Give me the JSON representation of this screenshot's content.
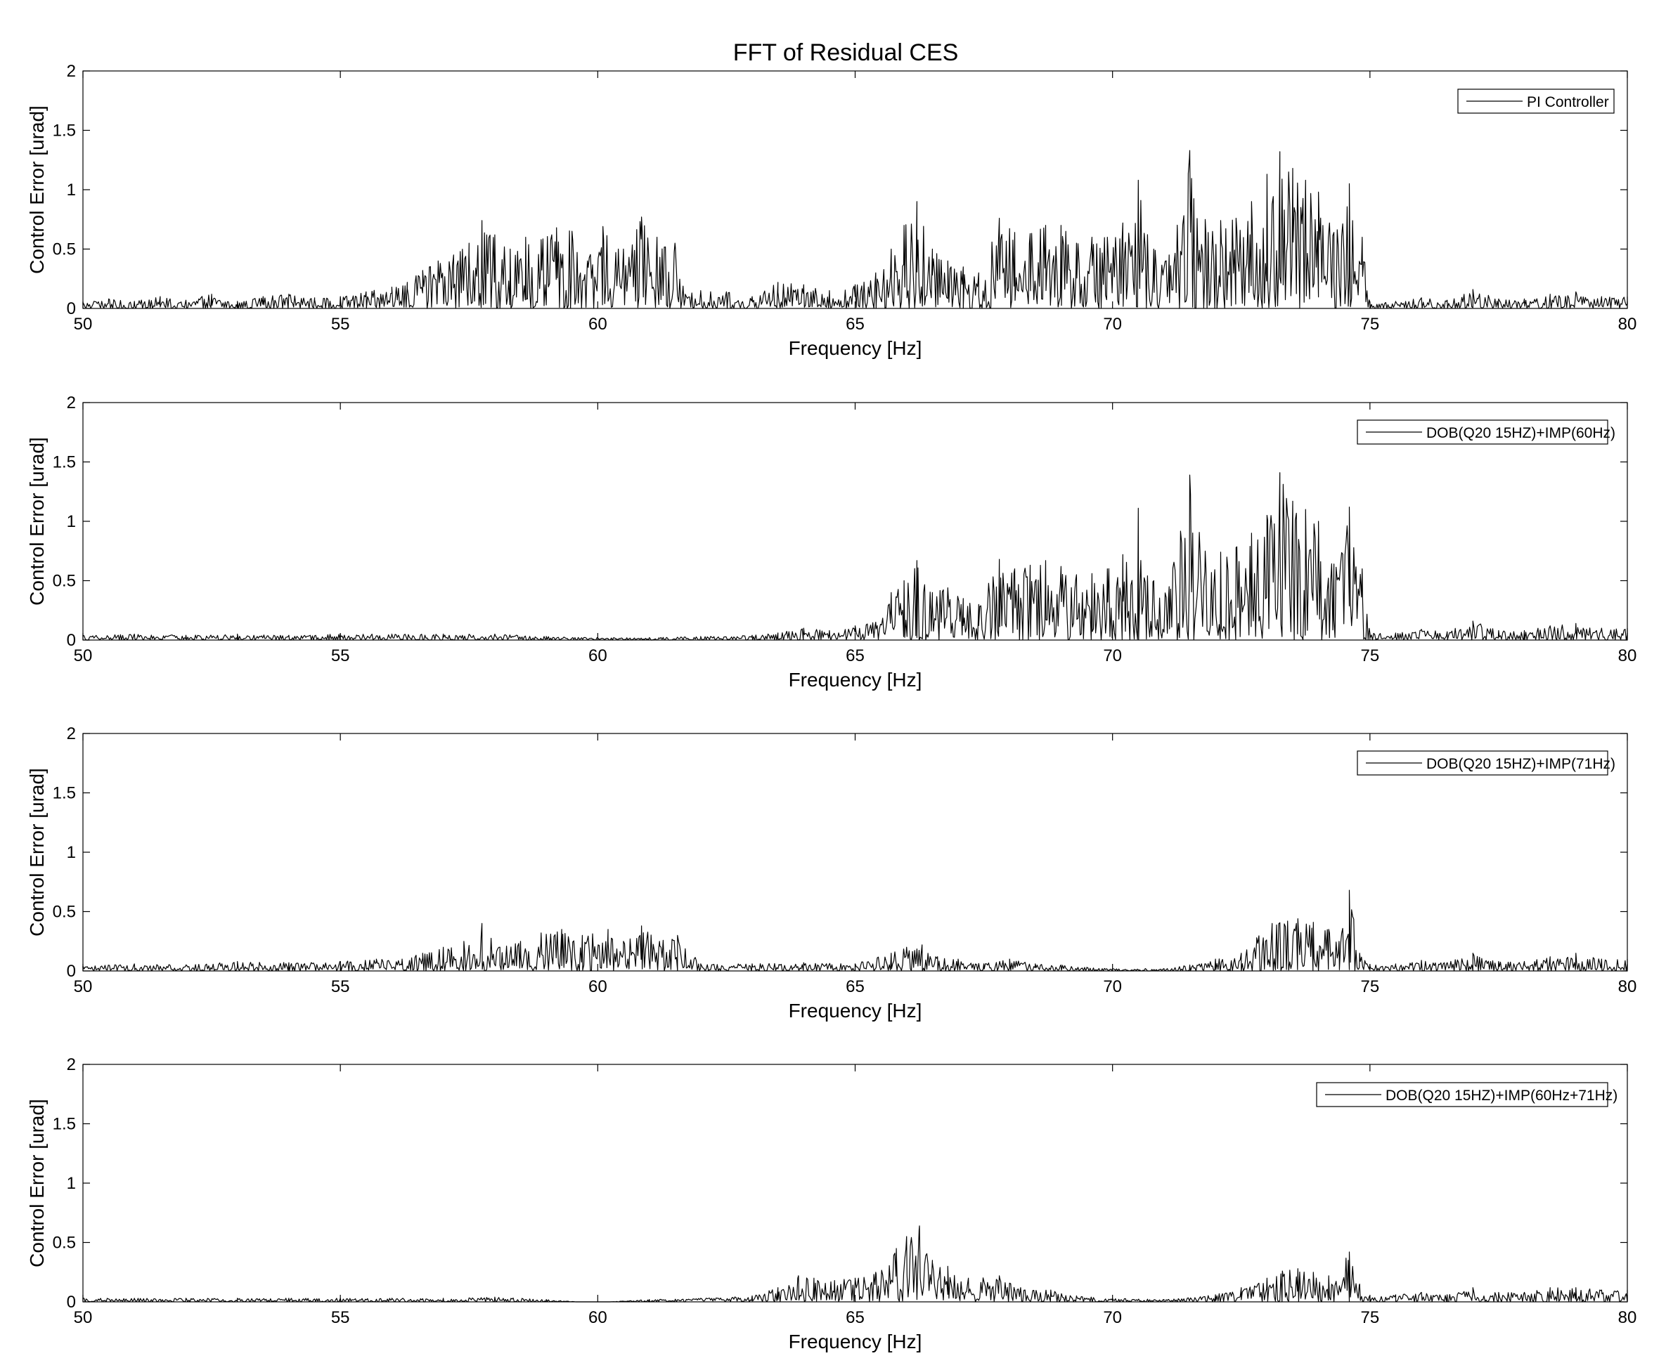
{
  "figure": {
    "title": "FFT of Residual CES",
    "background": "#ffffff",
    "line_color": "#000000"
  },
  "chart_data": [
    {
      "type": "line",
      "xlabel": "Frequency [Hz]",
      "ylabel": "Control Error [urad]",
      "xlim": [
        50,
        80
      ],
      "ylim": [
        0,
        2
      ],
      "xticks": [
        "50",
        "55",
        "60",
        "65",
        "70",
        "75",
        "80"
      ],
      "yticks": [
        "0",
        "0.5",
        "1",
        "1.5",
        "2"
      ],
      "grid": false,
      "legend_position": "top-right",
      "series": [
        {
          "name": "PI Controller",
          "x": [
            50.0,
            50.5,
            51.0,
            51.5,
            52.0,
            52.5,
            53.0,
            53.5,
            54.0,
            54.5,
            55.0,
            55.5,
            56.0,
            56.3,
            56.6,
            56.9,
            57.2,
            57.5,
            57.75,
            58.0,
            58.3,
            58.6,
            58.9,
            59.2,
            59.5,
            59.8,
            60.1,
            60.4,
            60.85,
            61.15,
            61.5,
            61.7,
            62.0,
            62.5,
            63.0,
            63.5,
            64.0,
            64.5,
            65.0,
            65.4,
            65.7,
            65.95,
            66.2,
            66.5,
            66.8,
            67.1,
            67.4,
            67.8,
            68.1,
            68.4,
            68.7,
            69.0,
            69.3,
            69.6,
            69.9,
            70.2,
            70.5,
            70.8,
            71.1,
            71.5,
            71.8,
            72.1,
            72.4,
            72.7,
            73.0,
            73.25,
            73.5,
            73.75,
            74.0,
            74.3,
            74.6,
            74.85,
            75.0,
            75.5,
            76.0,
            76.5,
            77.0,
            77.5,
            78.0,
            78.5,
            79.0,
            79.5,
            80.0
          ],
          "y": [
            0.05,
            0.08,
            0.06,
            0.1,
            0.07,
            0.12,
            0.06,
            0.1,
            0.12,
            0.09,
            0.1,
            0.14,
            0.18,
            0.22,
            0.32,
            0.4,
            0.45,
            0.55,
            0.74,
            0.62,
            0.5,
            0.6,
            0.58,
            0.68,
            0.65,
            0.4,
            0.69,
            0.5,
            0.77,
            0.6,
            0.55,
            0.12,
            0.15,
            0.14,
            0.1,
            0.22,
            0.2,
            0.15,
            0.2,
            0.3,
            0.5,
            0.7,
            0.9,
            0.5,
            0.4,
            0.35,
            0.3,
            0.76,
            0.64,
            0.63,
            0.7,
            0.7,
            0.55,
            0.6,
            0.6,
            0.72,
            1.08,
            0.5,
            0.45,
            1.33,
            0.75,
            0.74,
            0.76,
            0.9,
            1.13,
            1.32,
            1.18,
            1.08,
            0.98,
            0.64,
            1.05,
            0.6,
            0.05,
            0.06,
            0.09,
            0.07,
            0.16,
            0.08,
            0.08,
            0.12,
            0.14,
            0.1,
            0.1
          ]
        }
      ]
    },
    {
      "type": "line",
      "xlabel": "Frequency [Hz]",
      "ylabel": "Control Error [urad]",
      "xlim": [
        50,
        80
      ],
      "ylim": [
        0,
        2
      ],
      "xticks": [
        "50",
        "55",
        "60",
        "65",
        "70",
        "75",
        "80"
      ],
      "yticks": [
        "0",
        "0.5",
        "1",
        "1.5",
        "2"
      ],
      "grid": false,
      "legend_position": "top-right",
      "series": [
        {
          "name": "DOB(Q20 15HZ)+IMP(60Hz)",
          "x": [
            50.0,
            51.0,
            52.0,
            53.0,
            54.0,
            55.0,
            56.0,
            57.0,
            58.0,
            59.0,
            60.0,
            61.0,
            62.0,
            63.0,
            63.5,
            64.0,
            64.5,
            65.0,
            65.4,
            65.7,
            65.95,
            66.2,
            66.5,
            66.8,
            67.1,
            67.4,
            67.8,
            68.1,
            68.4,
            68.7,
            69.0,
            69.3,
            69.6,
            69.9,
            70.2,
            70.5,
            70.8,
            71.1,
            71.5,
            71.8,
            72.1,
            72.4,
            72.7,
            73.0,
            73.25,
            73.5,
            73.75,
            74.0,
            74.3,
            74.6,
            74.85,
            75.0,
            75.5,
            76.0,
            76.5,
            77.0,
            77.5,
            78.0,
            78.5,
            79.0,
            79.5,
            80.0
          ],
          "y": [
            0.04,
            0.05,
            0.04,
            0.05,
            0.04,
            0.05,
            0.05,
            0.05,
            0.05,
            0.03,
            0.02,
            0.02,
            0.03,
            0.04,
            0.06,
            0.1,
            0.08,
            0.12,
            0.15,
            0.4,
            0.5,
            0.67,
            0.4,
            0.44,
            0.35,
            0.3,
            0.68,
            0.6,
            0.63,
            0.67,
            0.62,
            0.55,
            0.56,
            0.6,
            0.72,
            1.11,
            0.5,
            0.45,
            1.39,
            0.75,
            0.74,
            0.78,
            0.9,
            1.05,
            1.41,
            1.17,
            1.1,
            1.0,
            0.64,
            1.12,
            0.6,
            0.06,
            0.06,
            0.09,
            0.07,
            0.16,
            0.08,
            0.08,
            0.12,
            0.14,
            0.1,
            0.1
          ]
        }
      ]
    },
    {
      "type": "line",
      "xlabel": "Frequency [Hz]",
      "ylabel": "Control Error [urad]",
      "xlim": [
        50,
        80
      ],
      "ylim": [
        0,
        2
      ],
      "xticks": [
        "50",
        "55",
        "60",
        "65",
        "70",
        "75",
        "80"
      ],
      "yticks": [
        "0",
        "0.5",
        "1",
        "1.5",
        "2"
      ],
      "grid": false,
      "legend_position": "top-right",
      "series": [
        {
          "name": "DOB(Q20 15HZ)+IMP(71Hz)",
          "x": [
            50.0,
            51.0,
            52.0,
            53.0,
            54.0,
            55.0,
            55.7,
            56.2,
            56.6,
            57.0,
            57.4,
            57.75,
            58.1,
            58.5,
            58.9,
            59.3,
            59.7,
            60.2,
            60.5,
            60.85,
            61.2,
            61.55,
            62.0,
            63.0,
            64.0,
            65.0,
            65.7,
            66.0,
            66.3,
            66.6,
            67.0,
            67.5,
            68.0,
            68.5,
            69.0,
            69.5,
            70.0,
            71.0,
            71.5,
            72.0,
            72.5,
            72.8,
            73.1,
            73.4,
            73.6,
            73.9,
            74.2,
            74.4,
            74.6,
            74.8,
            75.0,
            75.5,
            76.0,
            76.5,
            77.0,
            77.5,
            78.0,
            78.5,
            79.0,
            79.5,
            80.0
          ],
          "y": [
            0.04,
            0.06,
            0.05,
            0.08,
            0.07,
            0.08,
            0.1,
            0.1,
            0.15,
            0.2,
            0.25,
            0.4,
            0.2,
            0.25,
            0.32,
            0.35,
            0.3,
            0.35,
            0.25,
            0.38,
            0.25,
            0.3,
            0.06,
            0.06,
            0.07,
            0.06,
            0.15,
            0.2,
            0.22,
            0.12,
            0.1,
            0.06,
            0.1,
            0.06,
            0.05,
            0.03,
            0.02,
            0.02,
            0.05,
            0.1,
            0.15,
            0.28,
            0.4,
            0.42,
            0.44,
            0.41,
            0.35,
            0.25,
            0.68,
            0.15,
            0.05,
            0.06,
            0.09,
            0.07,
            0.15,
            0.08,
            0.08,
            0.12,
            0.15,
            0.1,
            0.1
          ]
        }
      ]
    },
    {
      "type": "line",
      "xlabel": "Frequency [Hz]",
      "ylabel": "Control Error [urad]",
      "xlim": [
        50,
        80
      ],
      "ylim": [
        0,
        2
      ],
      "xticks": [
        "50",
        "55",
        "60",
        "65",
        "70",
        "75",
        "80"
      ],
      "yticks": [
        "0",
        "0.5",
        "1",
        "1.5",
        "2"
      ],
      "grid": false,
      "legend_position": "top-right",
      "series": [
        {
          "name": "DOB(Q20 15HZ)+IMP(60Hz+71Hz)",
          "x": [
            50.0,
            51.0,
            52.0,
            53.0,
            54.0,
            55.0,
            56.0,
            57.0,
            58.0,
            59.0,
            59.6,
            60.2,
            61.0,
            62.0,
            63.0,
            63.5,
            63.9,
            64.2,
            64.6,
            65.0,
            65.4,
            65.8,
            66.0,
            66.25,
            66.5,
            66.8,
            67.2,
            67.8,
            68.3,
            68.8,
            69.3,
            70.0,
            71.0,
            72.0,
            72.5,
            73.0,
            73.3,
            73.6,
            73.9,
            74.2,
            74.6,
            74.8,
            75.0,
            75.5,
            76.0,
            76.5,
            77.0,
            77.5,
            78.0,
            78.5,
            79.0,
            79.5,
            80.0
          ],
          "y": [
            0.03,
            0.03,
            0.03,
            0.03,
            0.03,
            0.03,
            0.03,
            0.03,
            0.04,
            0.02,
            0.0,
            0.0,
            0.02,
            0.03,
            0.05,
            0.12,
            0.22,
            0.2,
            0.18,
            0.2,
            0.25,
            0.45,
            0.55,
            0.64,
            0.35,
            0.3,
            0.2,
            0.22,
            0.1,
            0.1,
            0.05,
            0.03,
            0.02,
            0.06,
            0.12,
            0.2,
            0.26,
            0.28,
            0.25,
            0.22,
            0.42,
            0.15,
            0.05,
            0.06,
            0.08,
            0.06,
            0.12,
            0.08,
            0.08,
            0.12,
            0.12,
            0.1,
            0.1
          ]
        }
      ]
    }
  ]
}
